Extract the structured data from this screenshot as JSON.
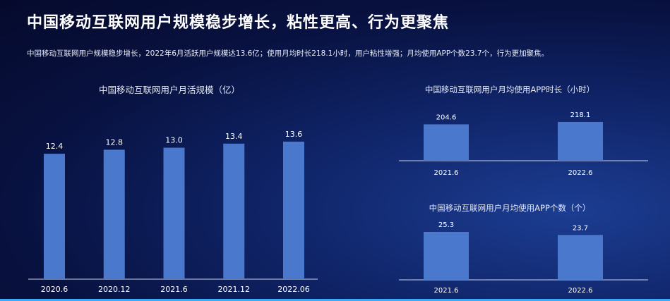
{
  "title": "中国移动互联网用户规模稳步增长，粘性更高、行为更聚焦",
  "subtitle": "中国移动互联网用户规模稳步增长，2022年6月活跃用户规模达13.6亿；使用月均时长218.1小时，用户粘性增强；月均使用APP个数23.7个，行为更加聚焦。",
  "colors": {
    "bar": "#4a78cc",
    "axis": "#c9d3ea",
    "text": "#ffffff"
  },
  "chart_data": [
    {
      "type": "bar",
      "title": "中国移动互联网用户月活规模（亿）",
      "categories": [
        "2020.6",
        "2020.12",
        "2021.6",
        "2021.12",
        "2022.06"
      ],
      "values": [
        12.4,
        12.8,
        13.0,
        13.4,
        13.6
      ],
      "labels": [
        "12.4",
        "12.8",
        "13.0",
        "13.4",
        "13.6"
      ],
      "ylim": [
        0,
        14.5
      ],
      "grid": false,
      "legend": "none"
    },
    {
      "type": "bar",
      "title": "中国移动互联网用户月均使用APP时长（小时）",
      "categories": [
        "2021.6",
        "2022.6"
      ],
      "values": [
        204.6,
        218.1
      ],
      "labels": [
        "204.6",
        "218.1"
      ],
      "ylim": [
        0,
        218.1
      ],
      "grid": false,
      "legend": "none"
    },
    {
      "type": "bar",
      "title": "中国移动互联网用户月均使用APP个数（个）",
      "categories": [
        "2021.6",
        "2022.6"
      ],
      "values": [
        25.3,
        23.7
      ],
      "labels": [
        "25.3",
        "23.7"
      ],
      "ylim": [
        0,
        25.3
      ],
      "grid": false,
      "legend": "none"
    }
  ]
}
